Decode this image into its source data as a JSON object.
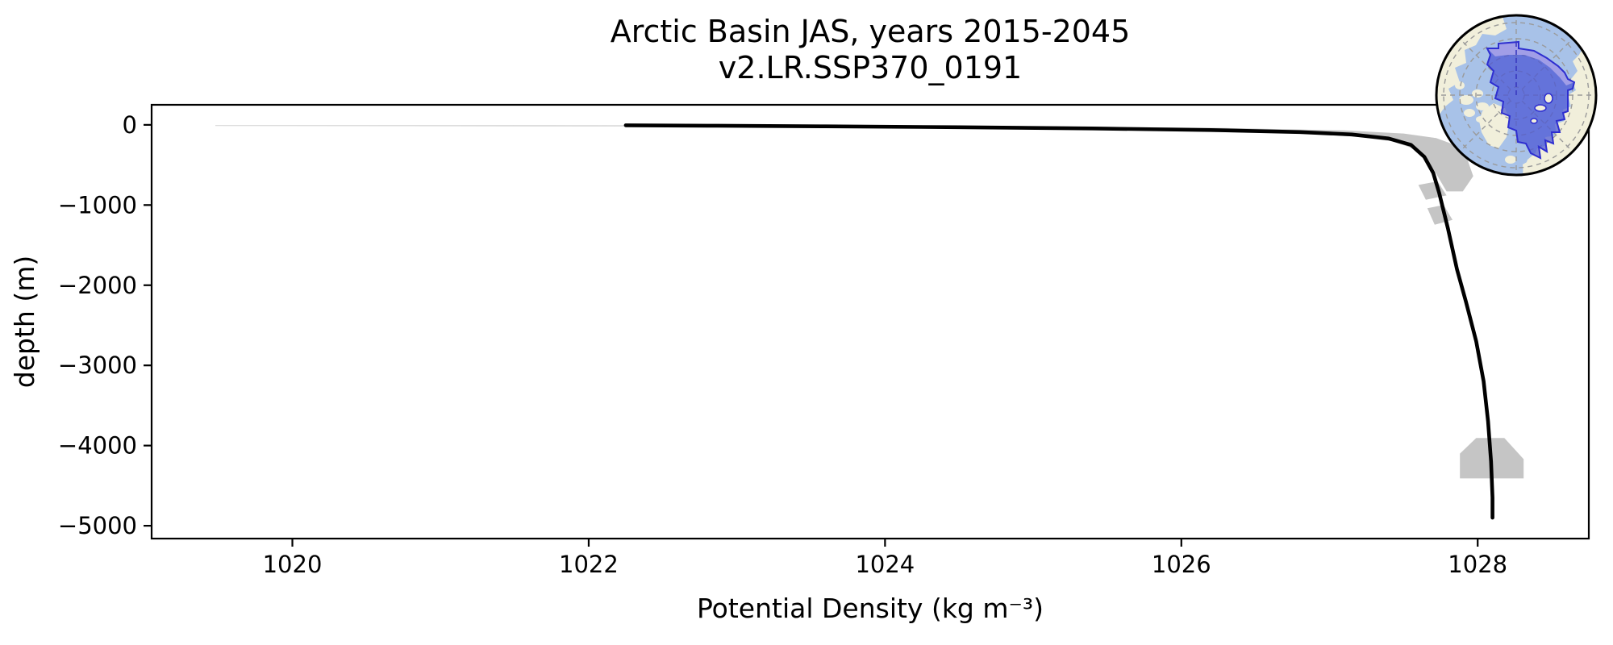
{
  "figure": {
    "title": "Arctic Basin JAS, years 2015-2045",
    "subtitle": "v2.LR.SSP370_0191",
    "xlabel": "Potential Density (kg m⁻³)",
    "ylabel": "depth (m)"
  },
  "chart_data": {
    "type": "line",
    "title": "Arctic Basin JAS, years 2015-2045",
    "subtitle": "v2.LR.SSP370_0191",
    "xlabel": "Potential Density (kg m⁻³)",
    "ylabel": "depth (m)",
    "xlim": [
      1019.05,
      1028.75
    ],
    "ylim": [
      -5160,
      250
    ],
    "xticks": [
      1020,
      1022,
      1024,
      1026,
      1028
    ],
    "xtick_labels": [
      "1020",
      "1022",
      "1024",
      "1026",
      "1028"
    ],
    "yticks": [
      0,
      -1000,
      -2000,
      -3000,
      -4000,
      -5000
    ],
    "ytick_labels": [
      "0",
      "−1000",
      "−2000",
      "−3000",
      "−4000",
      "−5000"
    ],
    "grid": false,
    "legend": "none",
    "series": [
      {
        "name": "mean potential density profile",
        "color": "#000000",
        "line_width": 4.6,
        "points": [
          [
            1022.25,
            -5
          ],
          [
            1022.8,
            -10
          ],
          [
            1023.6,
            -18
          ],
          [
            1024.5,
            -30
          ],
          [
            1025.4,
            -45
          ],
          [
            1026.2,
            -65
          ],
          [
            1026.8,
            -90
          ],
          [
            1027.15,
            -120
          ],
          [
            1027.4,
            -170
          ],
          [
            1027.55,
            -250
          ],
          [
            1027.64,
            -400
          ],
          [
            1027.7,
            -600
          ],
          [
            1027.74,
            -850
          ],
          [
            1027.8,
            -1300
          ],
          [
            1027.86,
            -1800
          ],
          [
            1027.92,
            -2200
          ],
          [
            1027.99,
            -2700
          ],
          [
            1028.04,
            -3200
          ],
          [
            1028.07,
            -3700
          ],
          [
            1028.09,
            -4200
          ],
          [
            1028.1,
            -4650
          ],
          [
            1028.1,
            -4900
          ]
        ]
      }
    ],
    "shading": {
      "name": "profile spread envelope",
      "color": "#c5c5c5",
      "sliver_color": "#d8d8d8",
      "regions": {
        "surface_sliver": [
          [
            1019.48,
            -2
          ],
          [
            1022.3,
            -3
          ],
          [
            1022.32,
            -20
          ],
          [
            1019.48,
            -13
          ]
        ],
        "halocline_band": [
          [
            1022.3,
            6
          ],
          [
            1023.6,
            -2
          ],
          [
            1025.0,
            -16
          ],
          [
            1026.3,
            -40
          ],
          [
            1027.1,
            -70
          ],
          [
            1027.5,
            -108
          ],
          [
            1027.72,
            -165
          ],
          [
            1027.86,
            -260
          ],
          [
            1027.93,
            -430
          ],
          [
            1027.97,
            -640
          ],
          [
            1027.9,
            -830
          ],
          [
            1027.79,
            -830
          ],
          [
            1027.72,
            -610
          ],
          [
            1027.66,
            -430
          ],
          [
            1027.56,
            -290
          ],
          [
            1027.42,
            -205
          ],
          [
            1027.2,
            -150
          ],
          [
            1026.9,
            -115
          ],
          [
            1026.3,
            -88
          ],
          [
            1025.2,
            -58
          ],
          [
            1023.8,
            -34
          ],
          [
            1022.3,
            -22
          ]
        ],
        "mid_depth_blob_1": [
          [
            1027.6,
            -750
          ],
          [
            1027.73,
            -705
          ],
          [
            1027.79,
            -880
          ],
          [
            1027.65,
            -935
          ]
        ],
        "mid_depth_blob_2": [
          [
            1027.66,
            -1040
          ],
          [
            1027.77,
            -1000
          ],
          [
            1027.83,
            -1185
          ],
          [
            1027.71,
            -1245
          ]
        ],
        "deep_blob": [
          [
            1027.99,
            -3905
          ],
          [
            1028.18,
            -3905
          ],
          [
            1028.31,
            -4170
          ],
          [
            1028.31,
            -4410
          ],
          [
            1027.88,
            -4410
          ],
          [
            1027.88,
            -4100
          ]
        ]
      }
    },
    "inset_map": {
      "name": "arctic basin region map",
      "projection": "north polar stereographic",
      "colors": {
        "ocean": "#a8c2e8",
        "land": "#f1efdb",
        "region_fill": "#4a54d4",
        "region_light": "#a7a3e8",
        "region_outline": "#2e2ed0",
        "graticule": "#9a9a9a",
        "meridian_accent": "#3a3ac0",
        "border": "#000000"
      }
    }
  }
}
